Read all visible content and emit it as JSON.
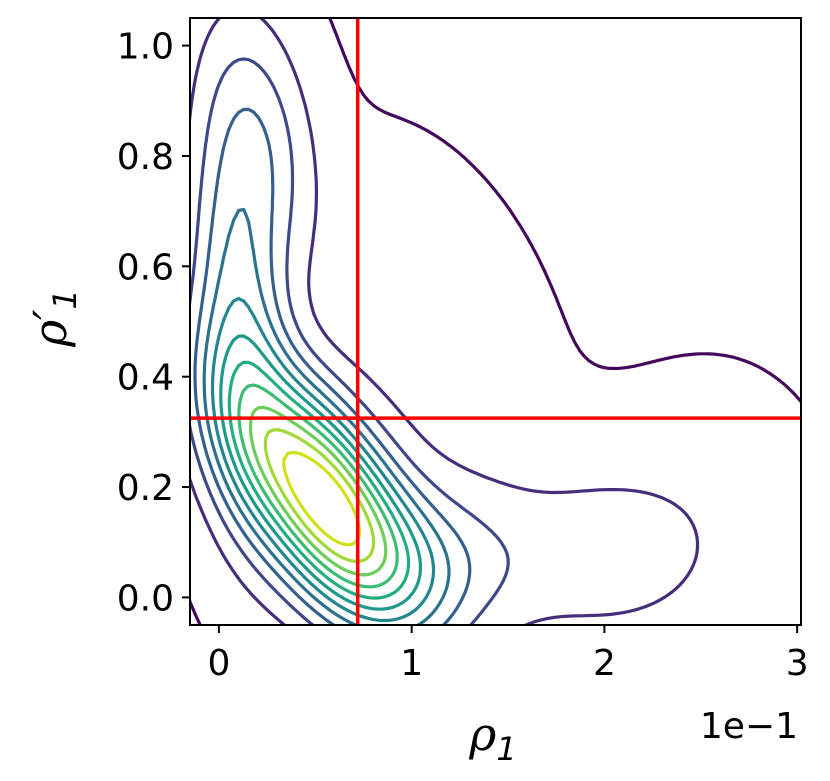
{
  "chart_data": {
    "type": "contour",
    "xlabel": {
      "symbol": "ρ",
      "subscript": "1"
    },
    "ylabel": {
      "symbol": "ρ′",
      "subscript": "1"
    },
    "x_offset_label": "1e−1",
    "xlim": [
      -0.15,
      3.02
    ],
    "ylim": [
      -0.05,
      1.05
    ],
    "x_ticks": [
      {
        "value": 0,
        "label": "0"
      },
      {
        "value": 1,
        "label": "1"
      },
      {
        "value": 2,
        "label": "2"
      },
      {
        "value": 3,
        "label": "3"
      }
    ],
    "y_ticks": [
      {
        "value": 0.0,
        "label": "0.0"
      },
      {
        "value": 0.2,
        "label": "0.2"
      },
      {
        "value": 0.4,
        "label": "0.4"
      },
      {
        "value": 0.6,
        "label": "0.6"
      },
      {
        "value": 0.8,
        "label": "0.8"
      },
      {
        "value": 1.0,
        "label": "1.0"
      }
    ],
    "reference_lines": {
      "vertical_x": 0.72,
      "horizontal_y": 0.325,
      "color": "#ff0000"
    },
    "colormap": "viridis",
    "contour_levels": [
      {
        "level": 1,
        "color": "#46085c"
      },
      {
        "level": 2,
        "color": "#472e7c"
      },
      {
        "level": 3,
        "color": "#3f4889"
      },
      {
        "level": 4,
        "color": "#355f8d"
      },
      {
        "level": 5,
        "color": "#2c718e"
      },
      {
        "level": 6,
        "color": "#24868e"
      },
      {
        "level": 7,
        "color": "#1f998a"
      },
      {
        "level": 8,
        "color": "#25ac82"
      },
      {
        "level": 9,
        "color": "#3fbc73"
      },
      {
        "level": 10,
        "color": "#6ccd5a"
      },
      {
        "level": 11,
        "color": "#a0da39"
      },
      {
        "level": 12,
        "color": "#d0e11c"
      }
    ],
    "density_peak": {
      "x": 0.52,
      "y": 0.19
    },
    "grid": false,
    "legend": "none"
  }
}
